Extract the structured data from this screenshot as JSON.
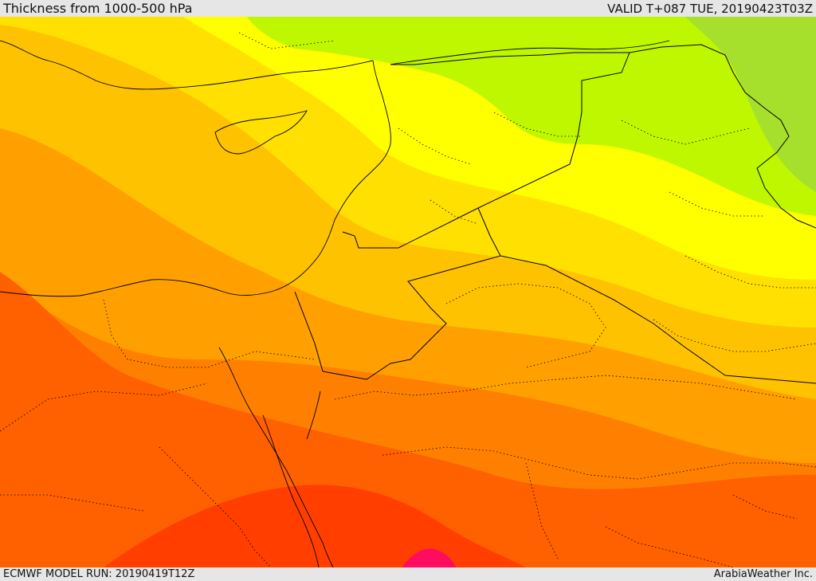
{
  "header": {
    "title": "Thickness from 1000-500 hPa",
    "valid": "VALID T+087 TUE, 20190423T03Z"
  },
  "footer": {
    "model_run": "ECMWF MODEL RUN: 20190419T12Z",
    "credit": "ArabiaWeather Inc."
  },
  "colors": {
    "band_1": "#a6e02c",
    "band_2": "#bff700",
    "band_3": "#ffff00",
    "band_4": "#ffe000",
    "band_5": "#ffc200",
    "band_6": "#ffa000",
    "band_7": "#ff8000",
    "band_8": "#ff6000",
    "band_9": "#ff3e00",
    "band_10": "#ff0b60"
  }
}
